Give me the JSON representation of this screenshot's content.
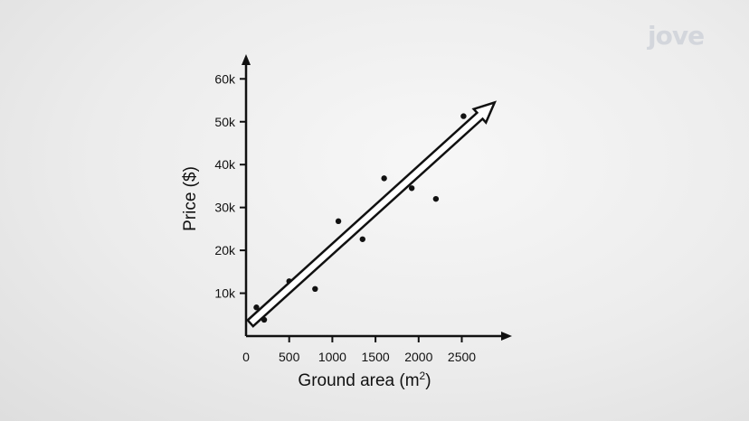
{
  "logo": {
    "text": "jove"
  },
  "chart_data": {
    "type": "scatter",
    "title": "",
    "xlabel": "Ground area (m",
    "xlabel_superscript": "2",
    "xlabel_suffix": ")",
    "ylabel": "Price ($)",
    "xlim": [
      0,
      3000
    ],
    "ylim": [
      0,
      65000
    ],
    "x_ticks": [
      0,
      500,
      1000,
      1500,
      2000,
      2500
    ],
    "x_tick_labels": [
      "0",
      "500",
      "1000",
      "1500",
      "2000",
      "2500"
    ],
    "y_ticks": [
      10000,
      20000,
      30000,
      40000,
      50000,
      60000
    ],
    "y_tick_labels": [
      "10k",
      "20k",
      "30k",
      "40k",
      "50k",
      "60k"
    ],
    "grid": false,
    "series": [
      {
        "points": [
          {
            "x": 120,
            "y": 6700
          },
          {
            "x": 210,
            "y": 3800
          },
          {
            "x": 500,
            "y": 12800
          },
          {
            "x": 800,
            "y": 11000
          },
          {
            "x": 1070,
            "y": 26800
          },
          {
            "x": 1350,
            "y": 22600
          },
          {
            "x": 1600,
            "y": 36800
          },
          {
            "x": 1920,
            "y": 34500
          },
          {
            "x": 2200,
            "y": 32000
          },
          {
            "x": 2520,
            "y": 51300
          }
        ]
      }
    ],
    "trend_arrow": {
      "from": {
        "x": 50,
        "y": 3000
      },
      "to": {
        "x": 2880,
        "y": 54500
      }
    },
    "colors": {
      "points": "#111111",
      "axes": "#111111",
      "arrow_fill": "#ffffff"
    }
  }
}
